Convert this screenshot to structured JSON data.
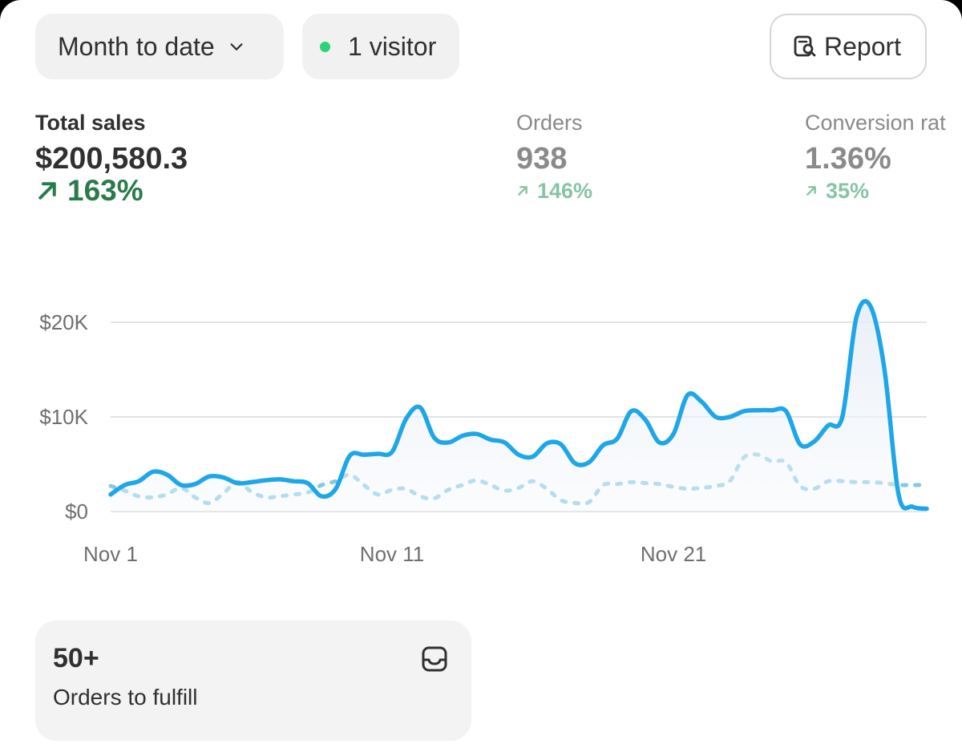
{
  "filters": {
    "date_range": "Month to date",
    "visitors": "1 visitor",
    "live_dot_color": "#29d47b"
  },
  "report_button": {
    "label": "Report",
    "icon": "report-search-icon"
  },
  "metrics": {
    "total_sales": {
      "label": "Total sales",
      "value": "$200,580.3",
      "change": "163%",
      "change_icon": "arrow-up-right-icon"
    },
    "orders": {
      "label": "Orders",
      "value": "938",
      "change": "146%",
      "change_icon": "arrow-up-right-icon"
    },
    "conversion_rate": {
      "label": "Conversion rat",
      "value": "1.36%",
      "change": "35%",
      "change_icon": "arrow-up-right-icon"
    }
  },
  "chart_data": {
    "type": "line",
    "x_tick_labels": [
      "Nov 1",
      "Nov 11",
      "Nov 21"
    ],
    "x_tick_days": [
      1,
      11,
      21
    ],
    "y_tick_labels": [
      "$20K",
      "$10K",
      "$0"
    ],
    "y_tick_values": [
      20000,
      10000,
      0
    ],
    "xlim": [
      1,
      30
    ],
    "ylim": [
      0,
      22500
    ],
    "grid": true,
    "series": [
      {
        "style": "solid",
        "color": "#1ea7e8",
        "area_fill": true,
        "x": [
          1,
          1.5,
          2,
          2.5,
          3,
          3.5,
          4,
          4.5,
          5,
          5.5,
          6,
          6.5,
          7,
          7.5,
          8,
          8.5,
          9,
          9.5,
          10,
          10.5,
          11,
          11.5,
          12,
          12.5,
          13,
          13.5,
          14,
          14.5,
          15,
          15.5,
          16,
          16.5,
          17,
          17.5,
          18,
          18.5,
          19,
          19.5,
          20,
          20.5,
          21,
          21.5,
          22,
          22.5,
          23,
          23.5,
          24,
          24.5,
          25,
          25.5,
          26,
          26.5,
          27,
          27.5,
          28,
          28.5,
          29,
          29.5,
          30
        ],
        "values": [
          1800,
          2800,
          3200,
          4200,
          3900,
          2800,
          2900,
          3700,
          3600,
          3000,
          3100,
          3300,
          3400,
          3200,
          3000,
          1600,
          2400,
          5900,
          6000,
          6100,
          6300,
          9800,
          11000,
          7800,
          7300,
          8000,
          8200,
          7600,
          7300,
          6000,
          5800,
          7200,
          7100,
          5100,
          5200,
          7000,
          7700,
          10600,
          9700,
          7300,
          8200,
          12300,
          11600,
          10000,
          10000,
          10600,
          10700,
          10700,
          10600,
          7100,
          7400,
          9100,
          10000,
          20500,
          21700,
          15000,
          1800,
          500,
          300
        ]
      },
      {
        "style": "dashed",
        "color": "#86c7e6",
        "area_fill": false,
        "x": [
          1,
          1.5,
          2,
          2.5,
          3,
          3.5,
          4,
          4.5,
          5,
          5.5,
          6,
          6.5,
          7,
          7.5,
          8,
          8.5,
          9,
          9.5,
          10,
          10.5,
          11,
          11.5,
          12,
          12.5,
          13,
          13.5,
          14,
          14.5,
          15,
          15.5,
          16,
          16.5,
          17,
          17.5,
          18,
          18.5,
          19,
          19.5,
          20,
          20.5,
          21,
          21.5,
          22,
          22.5,
          23,
          23.5,
          24,
          24.5,
          25,
          25.5,
          26,
          26.5,
          27,
          27.5,
          28,
          28.5,
          29,
          29.5,
          30
        ],
        "values": [
          2700,
          2200,
          1600,
          1500,
          1800,
          2500,
          1500,
          900,
          1900,
          3100,
          2100,
          1500,
          1600,
          1800,
          2000,
          2800,
          3200,
          3900,
          2800,
          1800,
          2300,
          2400,
          1600,
          1400,
          2300,
          2800,
          3300,
          2800,
          2200,
          2500,
          3200,
          2400,
          1200,
          900,
          1000,
          2800,
          2900,
          3100,
          3000,
          2900,
          2600,
          2400,
          2500,
          2700,
          3200,
          5700,
          6000,
          5300,
          5200,
          2700,
          2400,
          3200,
          3200,
          3100,
          3100,
          3000,
          2800,
          2800,
          2800
        ]
      }
    ]
  },
  "fulfill_card": {
    "count": "50+",
    "label": "Orders to fulfill",
    "icon": "inbox-icon"
  }
}
